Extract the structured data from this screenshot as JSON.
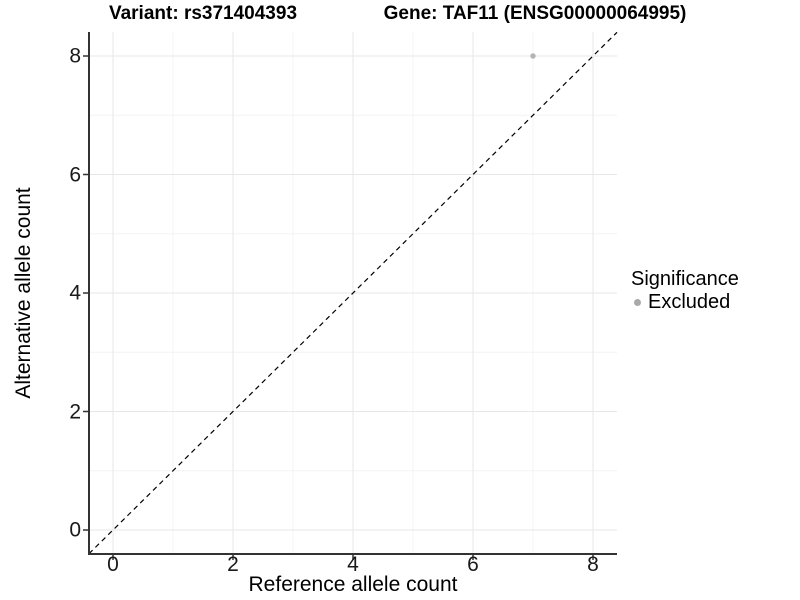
{
  "chart_data": {
    "type": "scatter",
    "title_variant": "Variant: rs371404393",
    "title_gene": "Gene: TAF11 (ENSG00000064995)",
    "xlabel": "Reference allele count",
    "ylabel": "Alternative allele count",
    "xlim": [
      -0.4,
      8.4
    ],
    "ylim": [
      -0.4,
      8.4
    ],
    "x_ticks": [
      0,
      2,
      4,
      6,
      8
    ],
    "y_ticks": [
      0,
      2,
      4,
      6,
      8
    ],
    "x_minor_ticks": [
      1,
      3,
      5,
      7
    ],
    "y_minor_ticks": [
      1,
      3,
      5,
      7
    ],
    "grid": "major and minor gridlines on white panel",
    "reference_line": {
      "slope": 1,
      "intercept": 0,
      "style": "dashed",
      "color": "#000000"
    },
    "series": [
      {
        "name": "Excluded",
        "color": "#b3b3b3",
        "points": [
          [
            7,
            8
          ]
        ]
      }
    ],
    "legend": {
      "title": "Significance",
      "position": "right",
      "items": [
        {
          "label": "Excluded",
          "color": "#a9a9a9"
        }
      ]
    },
    "colors": {
      "major_grid": "#e7e7e7",
      "minor_grid": "#f4f4f4",
      "axis_line": "#333333",
      "text": "#000000"
    }
  }
}
